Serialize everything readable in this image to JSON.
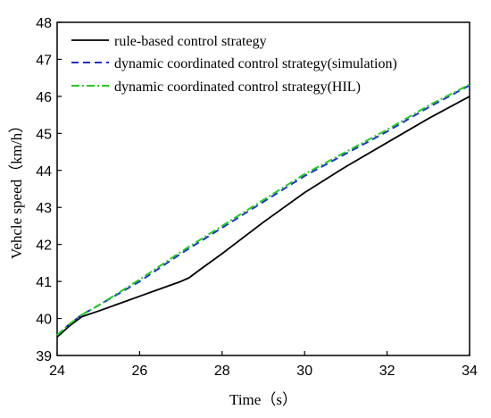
{
  "chart_data": {
    "type": "line",
    "xlabel": "Time（s）",
    "ylabel": "Vehcle speed（km/h）",
    "xlim": [
      24,
      34
    ],
    "ylim": [
      39,
      48
    ],
    "xticks": [
      24,
      26,
      28,
      30,
      32,
      34
    ],
    "yticks": [
      39,
      40,
      41,
      42,
      43,
      44,
      45,
      46,
      47,
      48
    ],
    "grid": false,
    "legend_position": "top-left",
    "series": [
      {
        "name": "rule-based control strategy",
        "color": "#000000",
        "dash": "solid",
        "x": [
          24,
          24.3,
          24.6,
          25,
          25.5,
          26,
          26.5,
          27,
          27.2,
          27.5,
          28,
          29,
          30,
          31,
          32,
          33,
          34
        ],
        "y": [
          39.5,
          39.8,
          40.05,
          40.2,
          40.4,
          40.6,
          40.8,
          41.0,
          41.1,
          41.35,
          41.75,
          42.6,
          43.4,
          44.1,
          44.75,
          45.4,
          46.0
        ]
      },
      {
        "name": "dynamic coordinated control strategy(simulation)",
        "color": "#1f2fcf",
        "dash": "dashed",
        "x": [
          24,
          24.3,
          24.6,
          25,
          26,
          27,
          28,
          29,
          30,
          31,
          32,
          33,
          34
        ],
        "y": [
          39.55,
          39.85,
          40.1,
          40.35,
          41.0,
          41.75,
          42.45,
          43.15,
          43.85,
          44.45,
          45.05,
          45.7,
          46.3
        ]
      },
      {
        "name": "dynamic coordinated control strategy(HIL)",
        "color": "#22cc22",
        "dash": "dashdot",
        "x": [
          24,
          24.3,
          24.6,
          25,
          26,
          27,
          28,
          29,
          30,
          31,
          32,
          33,
          34
        ],
        "y": [
          39.55,
          39.85,
          40.1,
          40.35,
          41.05,
          41.8,
          42.5,
          43.2,
          43.9,
          44.5,
          45.1,
          45.75,
          46.32
        ]
      }
    ]
  }
}
